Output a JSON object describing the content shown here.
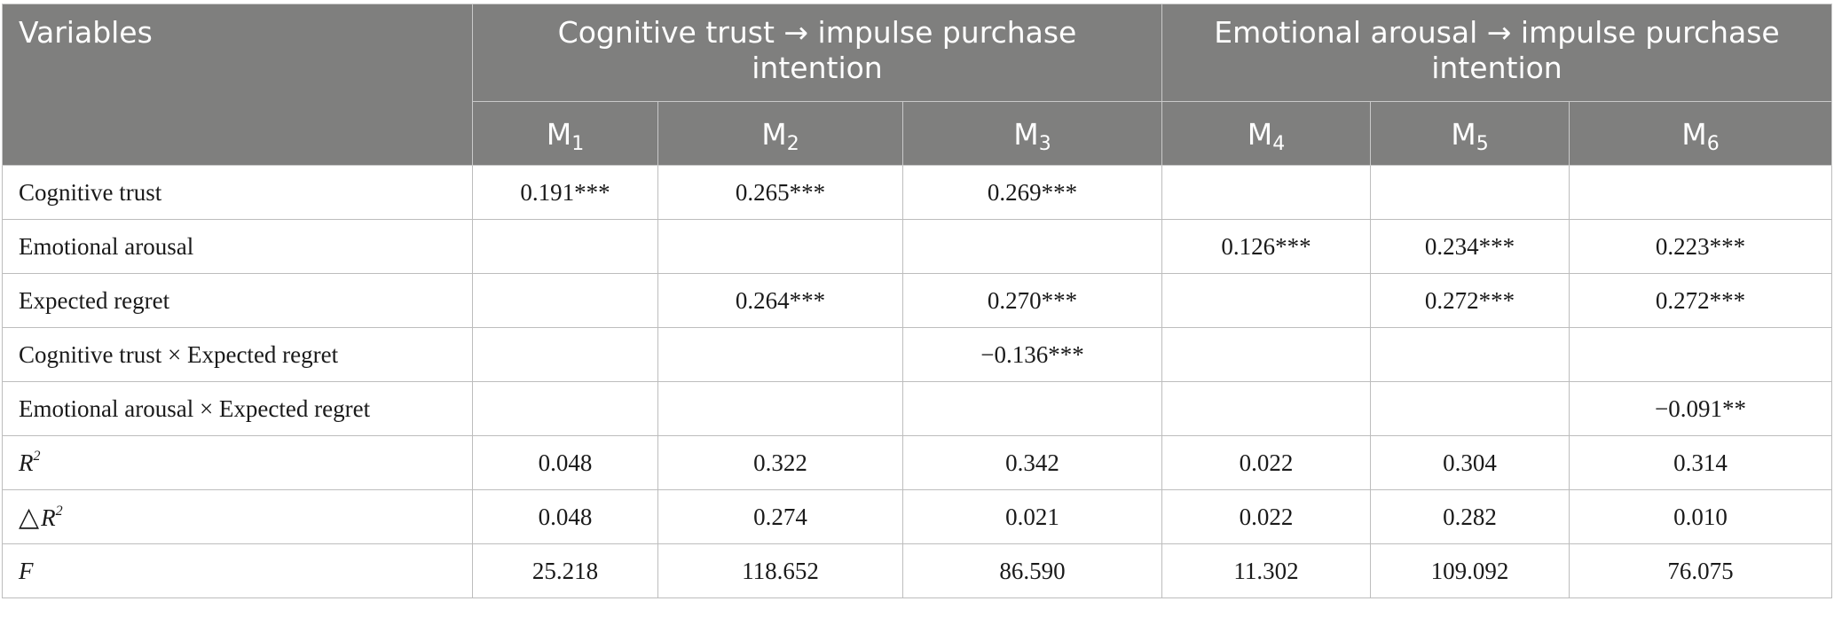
{
  "table": {
    "variables_label": "Variables",
    "groups": [
      "Cognitive trust → impulse purchase intention",
      "Emotional arousal → impulse purchase intention"
    ],
    "models": [
      {
        "base": "M",
        "sub": "1"
      },
      {
        "base": "M",
        "sub": "2"
      },
      {
        "base": "M",
        "sub": "3"
      },
      {
        "base": "M",
        "sub": "4"
      },
      {
        "base": "M",
        "sub": "5"
      },
      {
        "base": "M",
        "sub": "6"
      }
    ],
    "rows": [
      {
        "label": "Cognitive trust",
        "values": [
          "0.191***",
          "0.265***",
          "0.269***",
          "",
          "",
          ""
        ]
      },
      {
        "label": "Emotional arousal",
        "values": [
          "",
          "",
          "",
          "0.126***",
          "0.234***",
          "0.223***"
        ]
      },
      {
        "label": "Expected regret",
        "values": [
          "",
          "0.264***",
          "0.270***",
          "",
          "0.272***",
          "0.272***"
        ]
      },
      {
        "label": "Cognitive trust × Expected regret",
        "values": [
          "",
          "",
          "−0.136***",
          "",
          "",
          ""
        ]
      },
      {
        "label": "Emotional arousal × Expected regret",
        "values": [
          "",
          "",
          "",
          "",
          "",
          "−0.091**"
        ]
      },
      {
        "label": "",
        "values": [
          "0.048",
          "0.322",
          "0.342",
          "0.022",
          "0.304",
          "0.314"
        ]
      },
      {
        "label": "",
        "values": [
          "0.048",
          "0.274",
          "0.021",
          "0.022",
          "0.282",
          "0.010"
        ]
      },
      {
        "label": "",
        "values": [
          "25.218",
          "118.652",
          "86.590",
          "11.302",
          "109.092",
          "76.075"
        ]
      }
    ],
    "stat_labels": {
      "r2": {
        "symbol": "R",
        "sup": "2"
      },
      "delta_r2": {
        "prefix": "△",
        "symbol": "R",
        "sup": "2"
      },
      "f": {
        "symbol": "F"
      }
    }
  }
}
